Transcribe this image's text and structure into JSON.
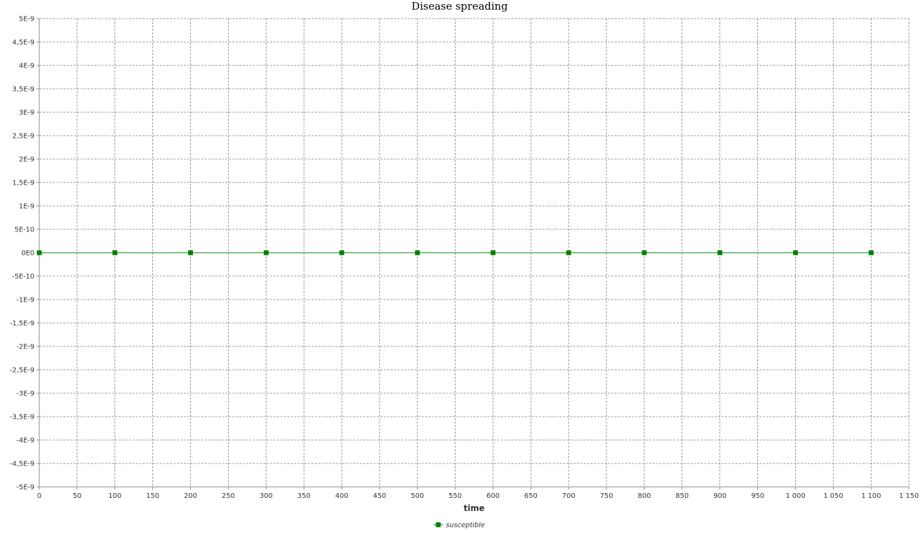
{
  "chart_data": {
    "type": "line",
    "title": "Disease spreading",
    "xlabel": "time",
    "ylabel": "",
    "xlim": [
      0,
      1150
    ],
    "ylim": [
      -5e-09,
      5e-09
    ],
    "x_ticks": [
      0,
      50,
      100,
      150,
      200,
      250,
      300,
      350,
      400,
      450,
      500,
      550,
      600,
      650,
      700,
      750,
      800,
      850,
      900,
      950,
      1000,
      1050,
      1100,
      1150
    ],
    "x_tick_labels": [
      "0",
      "50",
      "100",
      "150",
      "200",
      "250",
      "300",
      "350",
      "400",
      "450",
      "500",
      "550",
      "600",
      "650",
      "700",
      "750",
      "800",
      "850",
      "900",
      "950",
      "1 000",
      "1 050",
      "1 100",
      "1 150"
    ],
    "y_ticks": [
      5e-09,
      4.5e-09,
      4e-09,
      3.5e-09,
      3e-09,
      2.5e-09,
      2e-09,
      1.5e-09,
      1e-09,
      5e-10,
      0,
      -5e-10,
      -1e-09,
      -1.5e-09,
      -2e-09,
      -2.5e-09,
      -3e-09,
      -3.5e-09,
      -4e-09,
      -4.5e-09,
      -5e-09
    ],
    "y_tick_labels": [
      "5E-9",
      "4,5E-9",
      "4E-9",
      "3,5E-9",
      "3E-9",
      "2,5E-9",
      "2E-9",
      "1,5E-9",
      "1E-9",
      "5E-10",
      "0E0",
      "-5E-10",
      "-1E-9",
      "-1,5E-9",
      "-2E-9",
      "-2,5E-9",
      "-3E-9",
      "-3,5E-9",
      "-4E-9",
      "-4,5E-9",
      "-5E-9"
    ],
    "grid": true,
    "legend_position": "bottom",
    "series": [
      {
        "name": "susceptible",
        "color": "#008000",
        "marker": "square",
        "x": [
          0,
          100,
          200,
          300,
          400,
          500,
          600,
          700,
          800,
          900,
          1000,
          1100
        ],
        "y": [
          0,
          0,
          0,
          0,
          0,
          0,
          0,
          0,
          0,
          0,
          0,
          0
        ]
      }
    ]
  }
}
